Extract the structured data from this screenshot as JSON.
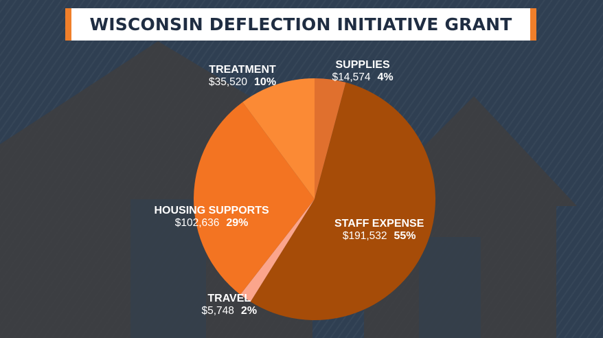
{
  "title": "WISCONSIN DEFLECTION INITIATIVE GRANT",
  "colors": {
    "background": "#2f3f52",
    "title_accent": "#f07f2a",
    "title_text": "#1f2d42",
    "label_text": "#ffffff"
  },
  "chart_data": {
    "type": "pie",
    "title": "WISCONSIN DEFLECTION INITIATIVE GRANT",
    "slices": [
      {
        "label": "SUPPLIES",
        "value": 14574,
        "value_label": "$14,574",
        "percent_label": "4%",
        "color": "#e0702e"
      },
      {
        "label": "STAFF EXPENSE",
        "value": 191532,
        "value_label": "$191,532",
        "percent_label": "55%",
        "color": "#a64c08"
      },
      {
        "label": "TRAVEL",
        "value": 5748,
        "value_label": "$5,748",
        "percent_label": "2%",
        "color": "#fba58c"
      },
      {
        "label": "HOUSING SUPPORTS",
        "value": 102636,
        "value_label": "$102,636",
        "percent_label": "29%",
        "color": "#f37422"
      },
      {
        "label": "TREATMENT",
        "value": 35520,
        "value_label": "$35,520",
        "percent_label": "10%",
        "color": "#fb8a35"
      }
    ]
  }
}
